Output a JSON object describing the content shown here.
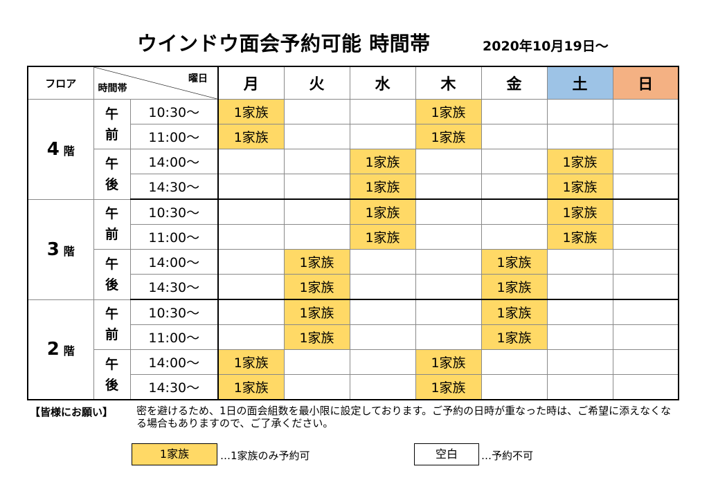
{
  "title": "ウインドウ面会予約可能 時間帯",
  "date": "2020年10月19日～",
  "header": {
    "floor": "フロア",
    "time": "時間帯",
    "weekday": "曜日",
    "days": [
      "月",
      "火",
      "水",
      "木",
      "金",
      "土",
      "日"
    ]
  },
  "floors": [
    {
      "label": "4",
      "suffix": "階",
      "rows": [
        {
          "period": "午前",
          "time": "10:30～",
          "slots": [
            "1家族",
            "",
            "",
            "1家族",
            "",
            "",
            ""
          ]
        },
        {
          "period": "午前",
          "time": "11:00～",
          "slots": [
            "1家族",
            "",
            "",
            "1家族",
            "",
            "",
            ""
          ]
        },
        {
          "period": "午後",
          "time": "14:00～",
          "slots": [
            "",
            "",
            "1家族",
            "",
            "",
            "1家族",
            ""
          ]
        },
        {
          "period": "午後",
          "time": "14:30～",
          "slots": [
            "",
            "",
            "1家族",
            "",
            "",
            "1家族",
            ""
          ]
        }
      ]
    },
    {
      "label": "3",
      "suffix": "階",
      "rows": [
        {
          "period": "午前",
          "time": "10:30～",
          "slots": [
            "",
            "",
            "1家族",
            "",
            "",
            "1家族",
            ""
          ]
        },
        {
          "period": "午前",
          "time": "11:00～",
          "slots": [
            "",
            "",
            "1家族",
            "",
            "",
            "1家族",
            ""
          ]
        },
        {
          "period": "午後",
          "time": "14:00～",
          "slots": [
            "",
            "1家族",
            "",
            "",
            "1家族",
            "",
            ""
          ]
        },
        {
          "period": "午後",
          "time": "14:30～",
          "slots": [
            "",
            "1家族",
            "",
            "",
            "1家族",
            "",
            ""
          ]
        }
      ]
    },
    {
      "label": "2",
      "suffix": "階",
      "rows": [
        {
          "period": "午前",
          "time": "10:30～",
          "slots": [
            "",
            "1家族",
            "",
            "",
            "1家族",
            "",
            ""
          ]
        },
        {
          "period": "午前",
          "time": "11:00～",
          "slots": [
            "",
            "1家族",
            "",
            "",
            "1家族",
            "",
            ""
          ]
        },
        {
          "period": "午後",
          "time": "14:00～",
          "slots": [
            "1家族",
            "",
            "",
            "1家族",
            "",
            "",
            ""
          ]
        },
        {
          "period": "午後",
          "time": "14:30～",
          "slots": [
            "1家族",
            "",
            "",
            "1家族",
            "",
            "",
            ""
          ]
        }
      ]
    }
  ],
  "note": {
    "label": "【皆様にお願い】",
    "text": "密を避けるため、1日の面会組数を最小限に設定しております。ご予約の日時が重なった時は、ご希望に添えなくなる場合もありますので、ご了承ください。"
  },
  "legend": {
    "available_label": "1家族",
    "available_desc": "…1家族のみ予約可",
    "blank_label": "空白",
    "blank_desc": "…予約不可"
  },
  "colors": {
    "available": "#ffd966",
    "saturday": "#9dc3e6",
    "sunday": "#f4b183"
  }
}
